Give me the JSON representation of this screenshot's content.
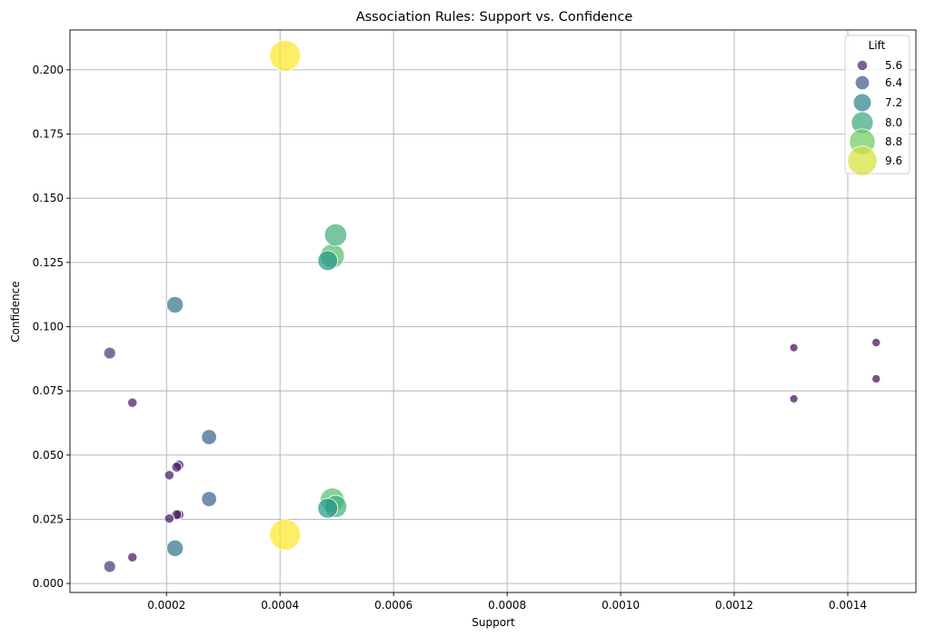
{
  "chart_data": {
    "type": "scatter",
    "title": "Association Rules: Support vs. Confidence",
    "xlabel": "Support",
    "ylabel": "Confidence",
    "xlim": [
      3e-05,
      0.00152
    ],
    "ylim": [
      -0.0035,
      0.2155
    ],
    "xticks": [
      "0.0002",
      "0.0004",
      "0.0006",
      "0.0008",
      "0.0010",
      "0.0012",
      "0.0014"
    ],
    "yticks": [
      "0.000",
      "0.025",
      "0.050",
      "0.075",
      "0.100",
      "0.125",
      "0.150",
      "0.175",
      "0.200"
    ],
    "grid": true,
    "size_variable": "Lift",
    "colormap": "viridis",
    "legend": {
      "title": "Lift",
      "placement": "top-right",
      "entries": [
        "5.6",
        "6.4",
        "7.2",
        "8.0",
        "8.8",
        "9.6"
      ]
    },
    "points": [
      {
        "x": 0.000409,
        "y": 0.2055,
        "lift": 9.9
      },
      {
        "x": 0.000409,
        "y": 0.019,
        "lift": 9.9
      },
      {
        "x": 0.000498,
        "y": 0.1357,
        "lift": 8.1
      },
      {
        "x": 0.000492,
        "y": 0.1275,
        "lift": 8.5
      },
      {
        "x": 0.000484,
        "y": 0.1257,
        "lift": 7.6
      },
      {
        "x": 0.000498,
        "y": 0.03,
        "lift": 8.1
      },
      {
        "x": 0.000492,
        "y": 0.0325,
        "lift": 8.5
      },
      {
        "x": 0.000484,
        "y": 0.0293,
        "lift": 7.6
      },
      {
        "x": 0.000215,
        "y": 0.1085,
        "lift": 6.9
      },
      {
        "x": 0.000215,
        "y": 0.0137,
        "lift": 6.9
      },
      {
        "x": 0.000275,
        "y": 0.057,
        "lift": 6.6
      },
      {
        "x": 0.000275,
        "y": 0.0329,
        "lift": 6.6
      },
      {
        "x": 0.0001,
        "y": 0.0897,
        "lift": 5.9
      },
      {
        "x": 0.0001,
        "y": 0.0066,
        "lift": 5.9
      },
      {
        "x": 0.00014,
        "y": 0.0704,
        "lift": 5.4
      },
      {
        "x": 0.00014,
        "y": 0.0102,
        "lift": 5.4
      },
      {
        "x": 0.000222,
        "y": 0.0461,
        "lift": 5.5
      },
      {
        "x": 0.000218,
        "y": 0.0453,
        "lift": 5.5
      },
      {
        "x": 0.000205,
        "y": 0.0422,
        "lift": 5.4
      },
      {
        "x": 0.000222,
        "y": 0.0268,
        "lift": 5.5
      },
      {
        "x": 0.000218,
        "y": 0.0268,
        "lift": 5.5
      },
      {
        "x": 0.000205,
        "y": 0.0253,
        "lift": 5.4
      },
      {
        "x": 0.001305,
        "y": 0.0918,
        "lift": 5.15
      },
      {
        "x": 0.001305,
        "y": 0.0719,
        "lift": 5.15
      },
      {
        "x": 0.00145,
        "y": 0.0938,
        "lift": 5.2
      },
      {
        "x": 0.00145,
        "y": 0.0797,
        "lift": 5.2
      }
    ]
  }
}
